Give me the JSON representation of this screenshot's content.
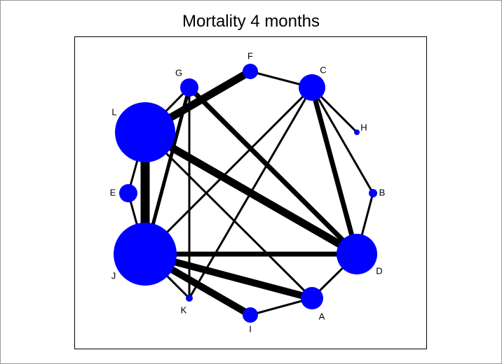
{
  "title": "Mortality 4 months",
  "colors": {
    "node": "#0000ff",
    "edge": "#000000",
    "frame": "#000000"
  },
  "nodes": [
    {
      "id": "A",
      "label": "A",
      "size": 16
    },
    {
      "id": "B",
      "label": "B",
      "size": 6
    },
    {
      "id": "C",
      "label": "C",
      "size": 19
    },
    {
      "id": "D",
      "label": "D",
      "size": 29
    },
    {
      "id": "E",
      "label": "E",
      "size": 13
    },
    {
      "id": "F",
      "label": "F",
      "size": 11
    },
    {
      "id": "G",
      "label": "G",
      "size": 13
    },
    {
      "id": "H",
      "label": "H",
      "size": 4
    },
    {
      "id": "I",
      "label": "I",
      "size": 11
    },
    {
      "id": "J",
      "label": "J",
      "size": 45
    },
    {
      "id": "K",
      "label": "K",
      "size": 5
    },
    {
      "id": "L",
      "label": "L",
      "size": 43
    }
  ],
  "edges": [
    {
      "from": "L",
      "to": "F",
      "weight": 11
    },
    {
      "from": "L",
      "to": "G",
      "weight": 3
    },
    {
      "from": "L",
      "to": "J",
      "weight": 13
    },
    {
      "from": "L",
      "to": "E",
      "weight": 3
    },
    {
      "from": "L",
      "to": "D",
      "weight": 11
    },
    {
      "from": "L",
      "to": "A",
      "weight": 3
    },
    {
      "from": "F",
      "to": "C",
      "weight": 3
    },
    {
      "from": "G",
      "to": "J",
      "weight": 5
    },
    {
      "from": "G",
      "to": "D",
      "weight": 7
    },
    {
      "from": "G",
      "to": "K",
      "weight": 3
    },
    {
      "from": "C",
      "to": "D",
      "weight": 7
    },
    {
      "from": "C",
      "to": "H",
      "weight": 3
    },
    {
      "from": "C",
      "to": "B",
      "weight": 3
    },
    {
      "from": "C",
      "to": "J",
      "weight": 3
    },
    {
      "from": "C",
      "to": "K",
      "weight": 3
    },
    {
      "from": "B",
      "to": "D",
      "weight": 3
    },
    {
      "from": "D",
      "to": "J",
      "weight": 7
    },
    {
      "from": "D",
      "to": "A",
      "weight": 3
    },
    {
      "from": "A",
      "to": "J",
      "weight": 10
    },
    {
      "from": "A",
      "to": "I",
      "weight": 3
    },
    {
      "from": "I",
      "to": "J",
      "weight": 10
    },
    {
      "from": "J",
      "to": "K",
      "weight": 3
    },
    {
      "from": "E",
      "to": "J",
      "weight": 3
    }
  ]
}
